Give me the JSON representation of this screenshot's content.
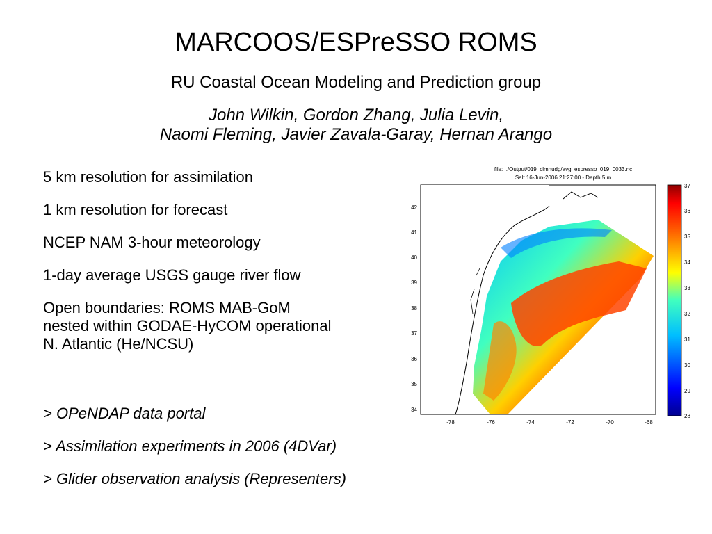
{
  "slide": {
    "title": "MARCOOS/ESPreSSO ROMS",
    "subtitle": "RU Coastal Ocean Modeling and Prediction group",
    "authors": [
      "John Wilkin, Gordon Zhang, Julia Levin,",
      "Naomi Fleming, Javier Zavala-Garay, Hernan Arango"
    ]
  },
  "bullets": [
    {
      "lines": [
        "5 km resolution for assimilation"
      ]
    },
    {
      "lines": [
        "1 km resolution for forecast"
      ]
    },
    {
      "lines": [
        "NCEP NAM 3-hour meteorology"
      ]
    },
    {
      "lines": [
        "1-day average USGS gauge river flow"
      ]
    },
    {
      "lines": [
        "Open boundaries: ROMS MAB-GoM",
        "nested within GODAE-HyCOM operational",
        "N. Atlantic (He/NCSU)"
      ]
    }
  ],
  "links": [
    "> OPeNDAP data portal",
    "> Assimilation experiments in 2006 (4DVar)",
    "> Glider observation analysis (Representers)"
  ],
  "figure": {
    "file_label": "file: ../Output/019_clmnudg/avg_espresso_019_0033.nc",
    "caption": "Salt 16-Jun-2006 21:27:00  - Depth 5 m",
    "y_ticks": [
      "42",
      "41",
      "40",
      "39",
      "38",
      "37",
      "36",
      "35",
      "34"
    ],
    "x_ticks": [
      "-78",
      "-76",
      "-74",
      "-72",
      "-70",
      "-68"
    ],
    "colorbar_ticks": [
      "37",
      "36",
      "35",
      "34",
      "33",
      "32",
      "31",
      "30",
      "29",
      "28"
    ],
    "colors": {
      "high_salinity": "#ff3000",
      "mid_salinity": "#00c8ff",
      "low_salinity": "#0000cc",
      "coast": "#000000"
    }
  }
}
